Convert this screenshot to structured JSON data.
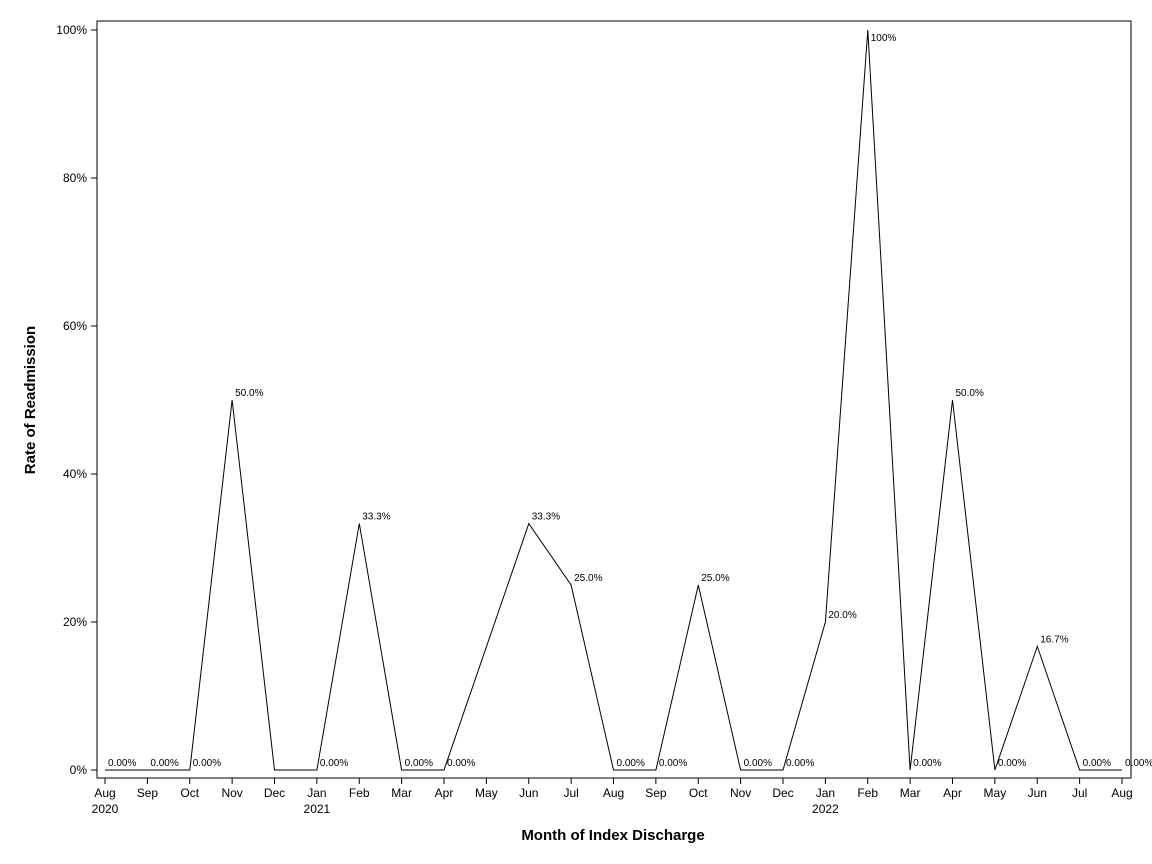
{
  "chart_data": {
    "type": "line",
    "title": "",
    "xlabel": "Month of Index Discharge",
    "ylabel": "Rate of Readmission",
    "ylim": [
      0,
      100
    ],
    "y_ticks": [
      "0%",
      "20%",
      "40%",
      "60%",
      "80%",
      "100%"
    ],
    "y_tick_values": [
      0,
      20,
      40,
      60,
      80,
      100
    ],
    "grid": false,
    "legend": "none",
    "line_color": "#000000",
    "x": [
      {
        "month": "Aug",
        "year": "2020"
      },
      {
        "month": "Sep",
        "year": ""
      },
      {
        "month": "Oct",
        "year": ""
      },
      {
        "month": "Nov",
        "year": ""
      },
      {
        "month": "Dec",
        "year": ""
      },
      {
        "month": "Jan",
        "year": "2021"
      },
      {
        "month": "Feb",
        "year": ""
      },
      {
        "month": "Mar",
        "year": ""
      },
      {
        "month": "Apr",
        "year": ""
      },
      {
        "month": "May",
        "year": ""
      },
      {
        "month": "Jun",
        "year": ""
      },
      {
        "month": "Jul",
        "year": ""
      },
      {
        "month": "Aug",
        "year": ""
      },
      {
        "month": "Sep",
        "year": ""
      },
      {
        "month": "Oct",
        "year": ""
      },
      {
        "month": "Nov",
        "year": ""
      },
      {
        "month": "Dec",
        "year": ""
      },
      {
        "month": "Jan",
        "year": "2022"
      },
      {
        "month": "Feb",
        "year": ""
      },
      {
        "month": "Mar",
        "year": ""
      },
      {
        "month": "Apr",
        "year": ""
      },
      {
        "month": "May",
        "year": ""
      },
      {
        "month": "Jun",
        "year": ""
      },
      {
        "month": "Jul",
        "year": ""
      },
      {
        "month": "Aug",
        "year": ""
      }
    ],
    "series": [
      {
        "values": [
          0,
          0,
          0,
          50,
          0,
          0,
          33.3,
          0,
          0,
          null,
          33.3,
          25,
          0,
          0,
          25,
          0,
          0,
          20,
          100,
          0,
          50,
          0,
          16.7,
          0,
          0
        ],
        "labels": [
          "0.00%",
          "0.00%",
          "0.00%",
          "50.0%",
          "",
          "0.00%",
          "33.3%",
          "0.00%",
          "0.00%",
          "",
          "33.3%",
          "25.0%",
          "0.00%",
          "0.00%",
          "25.0%",
          "0.00%",
          "0.00%",
          "20.0%",
          "100%",
          "0.00%",
          "50.0%",
          "0.00%",
          "16.7%",
          "0.00%",
          "0.00%"
        ]
      }
    ]
  }
}
